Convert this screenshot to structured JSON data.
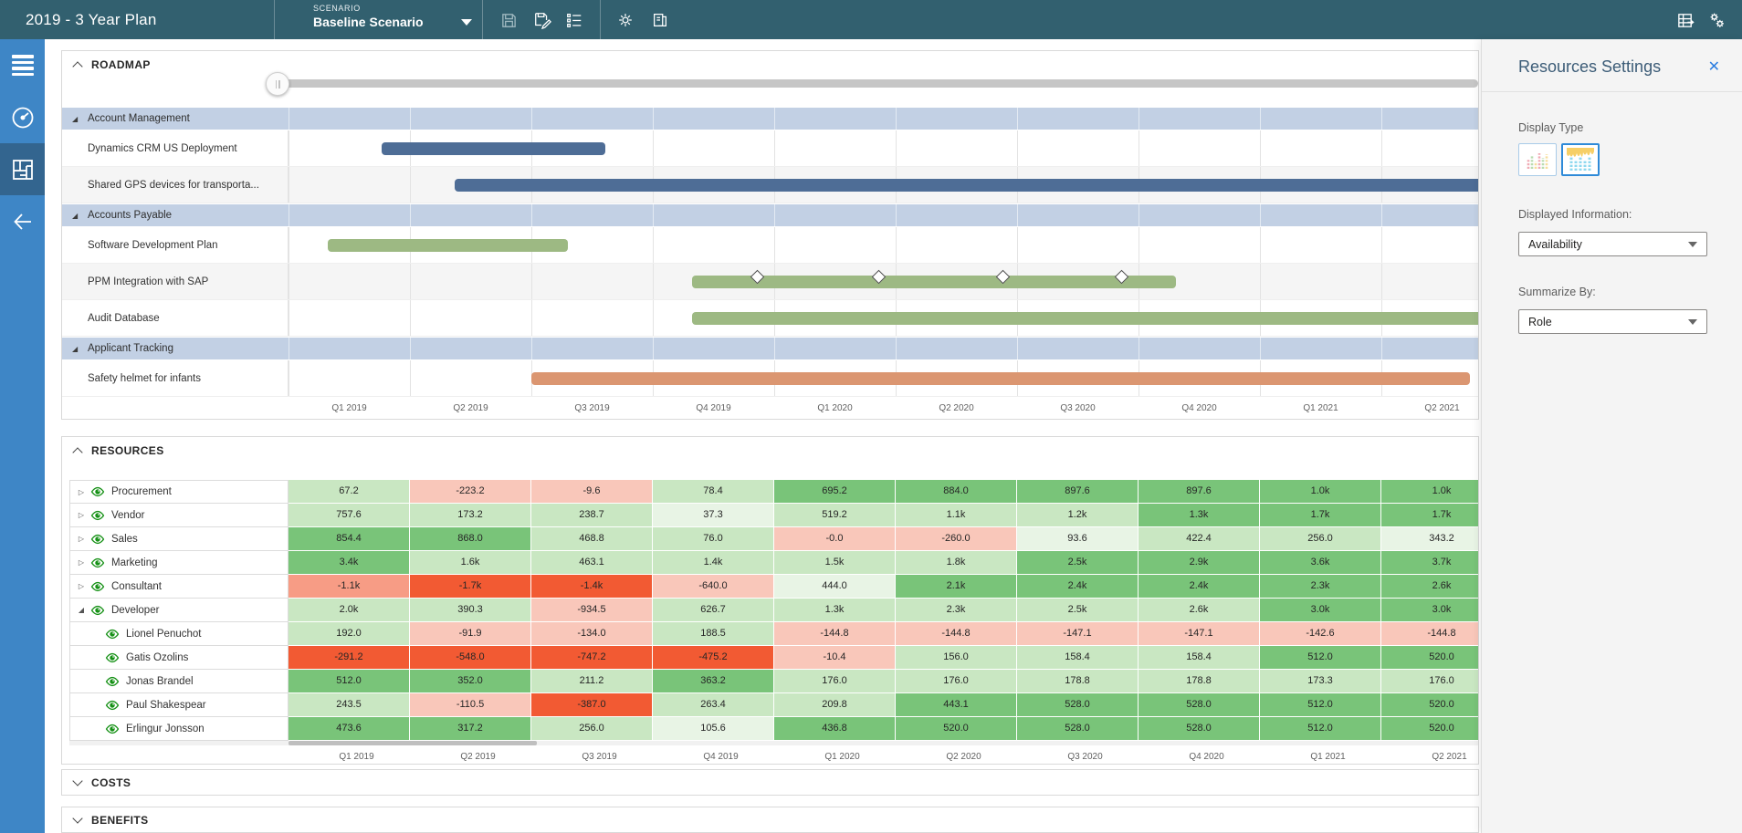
{
  "topbar": {
    "title": "2019 - 3 Year Plan",
    "scenario_label": "SCENARIO",
    "scenario_value": "Baseline Scenario",
    "left_icons": [
      "save-icon",
      "save-as-icon",
      "scenario-list-icon",
      "settings-gear-icon",
      "copy-plan-icon"
    ],
    "right_icons": [
      "grid-export-icon",
      "manage-gears-icon"
    ]
  },
  "sidebar": {
    "items": [
      "menu",
      "dashboard",
      "plan-detail",
      "back"
    ],
    "selected": "plan-detail"
  },
  "roadmap": {
    "title": "ROADMAP",
    "quarters": [
      "Q1 2019",
      "Q2 2019",
      "Q3 2019",
      "Q4 2019",
      "Q1 2020",
      "Q2 2020",
      "Q3 2020",
      "Q4 2020",
      "Q1 2021",
      "Q2 2021"
    ],
    "bar_colors": {
      "blue": "#4e6d96",
      "green": "#9db983",
      "orange": "#db9671"
    },
    "rows": [
      {
        "type": "group",
        "label": "Account Management"
      },
      {
        "type": "task",
        "label": "Dynamics CRM US Deployment",
        "bar": "blue",
        "start": 0.77,
        "end": 2.61,
        "shade": "white"
      },
      {
        "type": "task",
        "label": "Shared GPS devices for transporta...",
        "bar": "blue",
        "start": 1.37,
        "end": 10.4,
        "shade": "gray"
      },
      {
        "type": "group",
        "label": "Accounts Payable"
      },
      {
        "type": "task",
        "label": "Software Development Plan",
        "bar": "green",
        "start": 0.32,
        "end": 2.3,
        "shade": "white"
      },
      {
        "type": "task",
        "label": "PPM Integration with SAP",
        "bar": "green",
        "start": 3.32,
        "end": 7.31,
        "shade": "gray",
        "milestones": [
          3.86,
          4.86,
          5.88,
          6.86
        ]
      },
      {
        "type": "task",
        "label": "Audit Database",
        "bar": "green",
        "start": 3.32,
        "end": 10.4,
        "shade": "white"
      },
      {
        "type": "group",
        "label": "Applicant Tracking"
      },
      {
        "type": "task",
        "label": "Safety helmet for infants",
        "bar": "orange",
        "start": 2.0,
        "end": 9.73,
        "shade": "white"
      }
    ]
  },
  "resources": {
    "title": "RESOURCES",
    "quarters": [
      "Q1 2019",
      "Q2 2019",
      "Q3 2019",
      "Q4 2019",
      "Q1 2020",
      "Q2 2020",
      "Q3 2020",
      "Q4 2020",
      "Q1 2021",
      "Q2 2021"
    ],
    "color_map": {
      "g1": "#e8f4e5",
      "g2": "#c9e7c2",
      "g3": "#79c479",
      "r1": "#f9c7ba",
      "r2": "#f79c85",
      "r3": "#f25a33"
    },
    "rows": [
      {
        "label": "Procurement",
        "level": 0,
        "state": "collapsed",
        "cells": [
          [
            "67.2",
            "g2"
          ],
          [
            "-223.2",
            "r1"
          ],
          [
            "-9.6",
            "r1"
          ],
          [
            "78.4",
            "g2"
          ],
          [
            "695.2",
            "g3"
          ],
          [
            "884.0",
            "g3"
          ],
          [
            "897.6",
            "g3"
          ],
          [
            "897.6",
            "g3"
          ],
          [
            "1.0k",
            "g3"
          ],
          [
            "1.0k",
            "g3"
          ]
        ]
      },
      {
        "label": "Vendor",
        "level": 0,
        "state": "collapsed",
        "cells": [
          [
            "757.6",
            "g2"
          ],
          [
            "173.2",
            "g2"
          ],
          [
            "238.7",
            "g2"
          ],
          [
            "37.3",
            "g1"
          ],
          [
            "519.2",
            "g2"
          ],
          [
            "1.1k",
            "g2"
          ],
          [
            "1.2k",
            "g2"
          ],
          [
            "1.3k",
            "g3"
          ],
          [
            "1.7k",
            "g3"
          ],
          [
            "1.7k",
            "g3"
          ]
        ]
      },
      {
        "label": "Sales",
        "level": 0,
        "state": "collapsed",
        "cells": [
          [
            "854.4",
            "g3"
          ],
          [
            "868.0",
            "g3"
          ],
          [
            "468.8",
            "g2"
          ],
          [
            "76.0",
            "g2"
          ],
          [
            "-0.0",
            "r1"
          ],
          [
            "-260.0",
            "r1"
          ],
          [
            "93.6",
            "g1"
          ],
          [
            "422.4",
            "g2"
          ],
          [
            "256.0",
            "g2"
          ],
          [
            "343.2",
            "g1"
          ]
        ]
      },
      {
        "label": "Marketing",
        "level": 0,
        "state": "collapsed",
        "cells": [
          [
            "3.4k",
            "g3"
          ],
          [
            "1.6k",
            "g2"
          ],
          [
            "463.1",
            "g2"
          ],
          [
            "1.4k",
            "g2"
          ],
          [
            "1.5k",
            "g2"
          ],
          [
            "1.8k",
            "g2"
          ],
          [
            "2.5k",
            "g3"
          ],
          [
            "2.9k",
            "g3"
          ],
          [
            "3.6k",
            "g3"
          ],
          [
            "3.7k",
            "g3"
          ]
        ]
      },
      {
        "label": "Consultant",
        "level": 0,
        "state": "collapsed",
        "cells": [
          [
            "-1.1k",
            "r2"
          ],
          [
            "-1.7k",
            "r3"
          ],
          [
            "-1.4k",
            "r3"
          ],
          [
            "-640.0",
            "r1"
          ],
          [
            "444.0",
            "g1"
          ],
          [
            "2.1k",
            "g3"
          ],
          [
            "2.4k",
            "g3"
          ],
          [
            "2.4k",
            "g3"
          ],
          [
            "2.3k",
            "g3"
          ],
          [
            "2.6k",
            "g3"
          ]
        ]
      },
      {
        "label": "Developer",
        "level": 0,
        "state": "expanded",
        "cells": [
          [
            "2.0k",
            "g2"
          ],
          [
            "390.3",
            "g2"
          ],
          [
            "-934.5",
            "r1"
          ],
          [
            "626.7",
            "g2"
          ],
          [
            "1.3k",
            "g2"
          ],
          [
            "2.3k",
            "g2"
          ],
          [
            "2.5k",
            "g2"
          ],
          [
            "2.6k",
            "g2"
          ],
          [
            "3.0k",
            "g3"
          ],
          [
            "3.0k",
            "g3"
          ]
        ]
      },
      {
        "label": "Lionel Penuchot",
        "level": 1,
        "cells": [
          [
            "192.0",
            "g2"
          ],
          [
            "-91.9",
            "r1"
          ],
          [
            "-134.0",
            "r1"
          ],
          [
            "188.5",
            "g2"
          ],
          [
            "-144.8",
            "r1"
          ],
          [
            "-144.8",
            "r1"
          ],
          [
            "-147.1",
            "r1"
          ],
          [
            "-147.1",
            "r1"
          ],
          [
            "-142.6",
            "r1"
          ],
          [
            "-144.8",
            "r1"
          ]
        ]
      },
      {
        "label": "Gatis Ozolins",
        "level": 1,
        "cells": [
          [
            "-291.2",
            "r3"
          ],
          [
            "-548.0",
            "r3"
          ],
          [
            "-747.2",
            "r3"
          ],
          [
            "-475.2",
            "r3"
          ],
          [
            "-10.4",
            "r1"
          ],
          [
            "156.0",
            "g2"
          ],
          [
            "158.4",
            "g2"
          ],
          [
            "158.4",
            "g2"
          ],
          [
            "512.0",
            "g3"
          ],
          [
            "520.0",
            "g3"
          ]
        ]
      },
      {
        "label": "Jonas Brandel",
        "level": 1,
        "cells": [
          [
            "512.0",
            "g3"
          ],
          [
            "352.0",
            "g3"
          ],
          [
            "211.2",
            "g2"
          ],
          [
            "363.2",
            "g3"
          ],
          [
            "176.0",
            "g2"
          ],
          [
            "176.0",
            "g2"
          ],
          [
            "178.8",
            "g2"
          ],
          [
            "178.8",
            "g2"
          ],
          [
            "173.3",
            "g2"
          ],
          [
            "176.0",
            "g2"
          ]
        ]
      },
      {
        "label": "Paul Shakespear",
        "level": 1,
        "cells": [
          [
            "243.5",
            "g2"
          ],
          [
            "-110.5",
            "r1"
          ],
          [
            "-387.0",
            "r3"
          ],
          [
            "263.4",
            "g2"
          ],
          [
            "209.8",
            "g2"
          ],
          [
            "443.1",
            "g3"
          ],
          [
            "528.0",
            "g3"
          ],
          [
            "528.0",
            "g3"
          ],
          [
            "512.0",
            "g3"
          ],
          [
            "520.0",
            "g3"
          ]
        ]
      },
      {
        "label": "Erlingur Jonsson",
        "level": 1,
        "cells": [
          [
            "473.6",
            "g3"
          ],
          [
            "317.2",
            "g3"
          ],
          [
            "256.0",
            "g2"
          ],
          [
            "105.6",
            "g1"
          ],
          [
            "436.8",
            "g3"
          ],
          [
            "520.0",
            "g3"
          ],
          [
            "528.0",
            "g3"
          ],
          [
            "528.0",
            "g3"
          ],
          [
            "512.0",
            "g3"
          ],
          [
            "520.0",
            "g3"
          ]
        ]
      }
    ]
  },
  "costs": {
    "title": "COSTS"
  },
  "benefits": {
    "title": "BENEFITS"
  },
  "settings": {
    "title": "Resources Settings",
    "close_icon": "close-icon",
    "display_type_label": "Display Type",
    "display_type_options": [
      {
        "name": "grid-display-icon",
        "selected": false
      },
      {
        "name": "heatmap-display-icon",
        "selected": true
      }
    ],
    "displayed_information_label": "Displayed Information:",
    "displayed_information_value": "Availability",
    "summarize_by_label": "Summarize By:",
    "summarize_by_value": "Role"
  }
}
